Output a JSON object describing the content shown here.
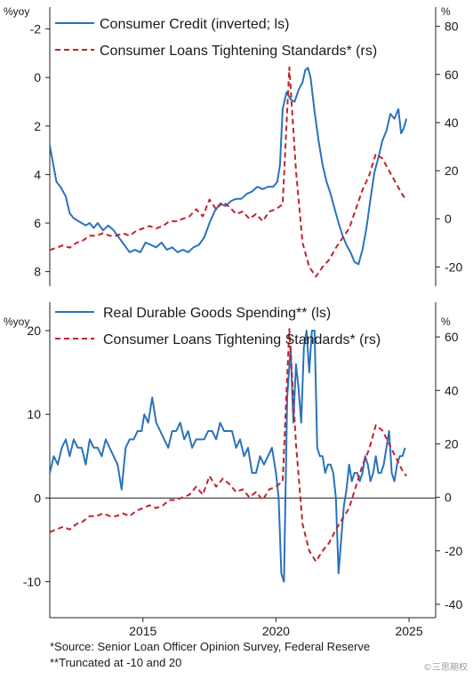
{
  "chart_data": [
    {
      "type": "line",
      "y_unit_left": "%yoy",
      "y_unit_right": "%",
      "left_axis": {
        "ticks": [
          -2,
          0,
          2,
          4,
          6,
          8
        ],
        "range": [
          8.6,
          -2.9
        ],
        "inverted": true
      },
      "right_axis": {
        "ticks": [
          80,
          60,
          40,
          20,
          0,
          -20
        ],
        "range": [
          -28,
          88
        ]
      },
      "legend_position": "top",
      "series": [
        {
          "name": "Consumer Credit (inverted; ls)",
          "axis": "left",
          "color": "#2a72bd",
          "style": "solid",
          "x": [
            2011.5,
            2011.6,
            2011.75,
            2011.9,
            2012.0,
            2012.1,
            2012.25,
            2012.4,
            2012.55,
            2012.7,
            2012.85,
            2013.0,
            2013.15,
            2013.3,
            2013.5,
            2013.7,
            2013.9,
            2014.1,
            2014.3,
            2014.5,
            2014.7,
            2014.9,
            2015.1,
            2015.3,
            2015.5,
            2015.7,
            2015.9,
            2016.1,
            2016.3,
            2016.5,
            2016.7,
            2016.9,
            2017.1,
            2017.3,
            2017.5,
            2017.7,
            2017.9,
            2018.1,
            2018.3,
            2018.5,
            2018.7,
            2018.9,
            2019.1,
            2019.3,
            2019.5,
            2019.7,
            2019.9,
            2020.05,
            2020.15,
            2020.25,
            2020.4,
            2020.55,
            2020.7,
            2020.85,
            2021.0,
            2021.1,
            2021.2,
            2021.3,
            2021.45,
            2021.6,
            2021.75,
            2021.9,
            2022.05,
            2022.2,
            2022.35,
            2022.5,
            2022.65,
            2022.8,
            2022.95,
            2023.1,
            2023.25,
            2023.4,
            2023.55,
            2023.7,
            2023.85,
            2024.0,
            2024.15,
            2024.3,
            2024.45,
            2024.6,
            2024.7,
            2024.8,
            2024.9
          ],
          "y": [
            2.8,
            3.4,
            4.3,
            4.5,
            4.7,
            4.9,
            5.6,
            5.8,
            5.9,
            6.0,
            6.1,
            6.0,
            6.2,
            6.0,
            6.3,
            6.1,
            6.3,
            6.6,
            6.9,
            7.2,
            7.1,
            7.2,
            6.8,
            6.9,
            7.0,
            6.8,
            7.1,
            7.0,
            7.2,
            7.1,
            7.2,
            7.0,
            6.9,
            6.6,
            6.0,
            5.5,
            5.2,
            5.3,
            5.1,
            5.0,
            5.0,
            4.8,
            4.7,
            4.5,
            4.6,
            4.5,
            4.5,
            4.3,
            3.6,
            1.3,
            0.6,
            0.9,
            1.0,
            0.5,
            0.2,
            -0.3,
            -0.4,
            0.0,
            1.4,
            2.6,
            3.6,
            4.3,
            4.8,
            5.4,
            6.0,
            6.5,
            6.9,
            7.2,
            7.6,
            7.7,
            7.1,
            6.2,
            5.0,
            3.9,
            3.3,
            2.6,
            2.2,
            1.5,
            1.7,
            1.3,
            2.3,
            2.1,
            1.7
          ]
        },
        {
          "name": "Consumer Loans Tightening Standards* (rs)",
          "axis": "right",
          "color": "#c0232c",
          "style": "dashed",
          "x": [
            2011.5,
            2011.75,
            2012.0,
            2012.25,
            2012.5,
            2012.75,
            2013.0,
            2013.25,
            2013.5,
            2013.75,
            2014.0,
            2014.25,
            2014.5,
            2014.75,
            2015.0,
            2015.25,
            2015.5,
            2015.75,
            2016.0,
            2016.25,
            2016.5,
            2016.75,
            2017.0,
            2017.25,
            2017.5,
            2017.75,
            2018.0,
            2018.25,
            2018.5,
            2018.75,
            2019.0,
            2019.25,
            2019.5,
            2019.75,
            2020.0,
            2020.25,
            2020.5,
            2020.75,
            2021.0,
            2021.25,
            2021.5,
            2021.75,
            2022.0,
            2022.25,
            2022.5,
            2022.75,
            2023.0,
            2023.25,
            2023.5,
            2023.75,
            2024.0,
            2024.25,
            2024.5,
            2024.75,
            2024.9
          ],
          "y": [
            -13,
            -12,
            -11,
            -12,
            -10,
            -9,
            -7,
            -7,
            -6,
            -7,
            -7,
            -6,
            -7,
            -5,
            -4,
            -3,
            -4,
            -3,
            -1,
            -1,
            0,
            1,
            4,
            1,
            8,
            4,
            7,
            5,
            2,
            3,
            0,
            2,
            -1,
            3,
            4,
            6,
            63,
            20,
            -10,
            -20,
            -24,
            -20,
            -17,
            -12,
            -8,
            -4,
            4,
            12,
            18,
            27,
            25,
            20,
            15,
            10,
            8
          ]
        }
      ]
    },
    {
      "type": "line",
      "y_unit_left": "%yoy",
      "y_unit_right": "%",
      "x_ticks": [
        "2015",
        "2020",
        "2025"
      ],
      "left_axis": {
        "ticks": [
          -10,
          0,
          10,
          20
        ],
        "range": [
          -14.3,
          23.4
        ]
      },
      "right_axis": {
        "ticks": [
          60,
          40,
          20,
          0,
          -20,
          -40
        ],
        "range": [
          -45,
          73
        ]
      },
      "legend_position": "top",
      "series": [
        {
          "name": "Real Durable Goods Spending** (ls)",
          "axis": "left",
          "color": "#2a72bd",
          "style": "solid",
          "x": [
            2011.5,
            2011.65,
            2011.8,
            2011.95,
            2012.1,
            2012.25,
            2012.4,
            2012.55,
            2012.7,
            2012.85,
            2013.0,
            2013.15,
            2013.3,
            2013.45,
            2013.6,
            2013.75,
            2013.9,
            2014.05,
            2014.2,
            2014.35,
            2014.5,
            2014.65,
            2014.8,
            2014.95,
            2015.05,
            2015.2,
            2015.35,
            2015.5,
            2015.65,
            2015.8,
            2015.95,
            2016.1,
            2016.25,
            2016.4,
            2016.55,
            2016.7,
            2016.85,
            2017.0,
            2017.15,
            2017.3,
            2017.45,
            2017.6,
            2017.75,
            2017.9,
            2018.05,
            2018.2,
            2018.35,
            2018.5,
            2018.65,
            2018.8,
            2018.95,
            2019.1,
            2019.25,
            2019.4,
            2019.55,
            2019.7,
            2019.85,
            2020.0,
            2020.1,
            2020.2,
            2020.3,
            2020.42,
            2020.55,
            2020.65,
            2020.75,
            2020.85,
            2020.95,
            2021.05,
            2021.15,
            2021.25,
            2021.35,
            2021.45,
            2021.55,
            2021.65,
            2021.75,
            2021.85,
            2021.95,
            2022.05,
            2022.15,
            2022.25,
            2022.35,
            2022.45,
            2022.55,
            2022.65,
            2022.75,
            2022.85,
            2022.95,
            2023.05,
            2023.15,
            2023.25,
            2023.35,
            2023.45,
            2023.55,
            2023.65,
            2023.75,
            2023.85,
            2023.95,
            2024.05,
            2024.15,
            2024.25,
            2024.35,
            2024.45,
            2024.55,
            2024.65,
            2024.75,
            2024.85
          ],
          "y": [
            3,
            5,
            4,
            6,
            7,
            5,
            7,
            6,
            6,
            4,
            7,
            6,
            6,
            5,
            7,
            6,
            5,
            4,
            1,
            6,
            7,
            7,
            8,
            8,
            10,
            9,
            12,
            9,
            8,
            7,
            6,
            8,
            8,
            9,
            7,
            8,
            6,
            7,
            7,
            7,
            8,
            8,
            7,
            9,
            8,
            8,
            8,
            6,
            7,
            5,
            6,
            3,
            3,
            5,
            4,
            5,
            6,
            3,
            0,
            -9,
            -10,
            12,
            18,
            9,
            16,
            13,
            9,
            18,
            20,
            15,
            20,
            20,
            6,
            5,
            5,
            3,
            4,
            4,
            3,
            0,
            -9,
            -5,
            -1,
            1,
            4,
            2,
            3,
            3,
            2,
            3,
            5,
            4,
            2,
            3,
            5,
            3,
            3,
            4,
            6,
            8,
            3,
            2,
            4,
            5,
            5,
            6
          ],
          "note": "Truncated at -10 and 20"
        },
        {
          "name": "Consumer Loans Tightening Standards* (rs)",
          "axis": "right",
          "color": "#c0232c",
          "style": "dashed",
          "x": [
            2011.5,
            2011.75,
            2012.0,
            2012.25,
            2012.5,
            2012.75,
            2013.0,
            2013.25,
            2013.5,
            2013.75,
            2014.0,
            2014.25,
            2014.5,
            2014.75,
            2015.0,
            2015.25,
            2015.5,
            2015.75,
            2016.0,
            2016.25,
            2016.5,
            2016.75,
            2017.0,
            2017.25,
            2017.5,
            2017.75,
            2018.0,
            2018.25,
            2018.5,
            2018.75,
            2019.0,
            2019.25,
            2019.5,
            2019.75,
            2020.0,
            2020.25,
            2020.5,
            2020.75,
            2021.0,
            2021.25,
            2021.5,
            2021.75,
            2022.0,
            2022.25,
            2022.5,
            2022.75,
            2023.0,
            2023.25,
            2023.5,
            2023.75,
            2024.0,
            2024.25,
            2024.5,
            2024.75,
            2024.9
          ],
          "y": [
            -13,
            -12,
            -11,
            -12,
            -10,
            -9,
            -7,
            -7,
            -6,
            -7,
            -7,
            -6,
            -7,
            -5,
            -4,
            -3,
            -4,
            -3,
            -1,
            -1,
            0,
            1,
            4,
            1,
            8,
            4,
            7,
            5,
            2,
            3,
            0,
            2,
            -1,
            3,
            4,
            6,
            63,
            20,
            -10,
            -20,
            -24,
            -20,
            -17,
            -12,
            -8,
            -4,
            4,
            12,
            18,
            27,
            25,
            20,
            15,
            10,
            8
          ]
        }
      ]
    }
  ],
  "x_axis": {
    "ticks": [
      2015,
      2020,
      2025
    ],
    "range": [
      2011.5,
      2026.0
    ]
  },
  "footnotes": {
    "source": "*Source: Senior Loan Officer Opinion Survey, Federal Reserve",
    "truncation": "**Truncated at -10 and 20"
  },
  "watermark": "©三思期权"
}
